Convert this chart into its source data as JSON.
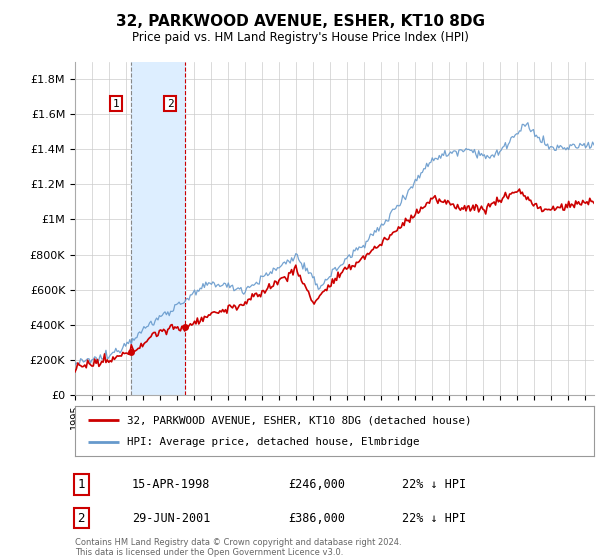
{
  "title": "32, PARKWOOD AVENUE, ESHER, KT10 8DG",
  "subtitle": "Price paid vs. HM Land Registry's House Price Index (HPI)",
  "ylabel_ticks": [
    "£0",
    "£200K",
    "£400K",
    "£600K",
    "£800K",
    "£1M",
    "£1.2M",
    "£1.4M",
    "£1.6M",
    "£1.8M"
  ],
  "ytick_values": [
    0,
    200000,
    400000,
    600000,
    800000,
    1000000,
    1200000,
    1400000,
    1600000,
    1800000
  ],
  "ylim": [
    0,
    1900000
  ],
  "xlim_start": 1995.0,
  "xlim_end": 2025.5,
  "sale1_date": 1998.29,
  "sale1_price": 246000,
  "sale1_label": "1",
  "sale1_text": "15-APR-1998",
  "sale1_amount": "£246,000",
  "sale1_hpi": "22% ↓ HPI",
  "sale2_date": 2001.49,
  "sale2_price": 386000,
  "sale2_label": "2",
  "sale2_text": "29-JUN-2001",
  "sale2_amount": "£386,000",
  "sale2_hpi": "22% ↓ HPI",
  "legend_line1": "32, PARKWOOD AVENUE, ESHER, KT10 8DG (detached house)",
  "legend_line2": "HPI: Average price, detached house, Elmbridge",
  "footer": "Contains HM Land Registry data © Crown copyright and database right 2024.\nThis data is licensed under the Open Government Licence v3.0.",
  "red_color": "#cc0000",
  "blue_color": "#6699cc",
  "shade_color": "#ddeeff",
  "grid_color": "#cccccc",
  "background_color": "#ffffff",
  "sale_box_color": "#cc0000"
}
